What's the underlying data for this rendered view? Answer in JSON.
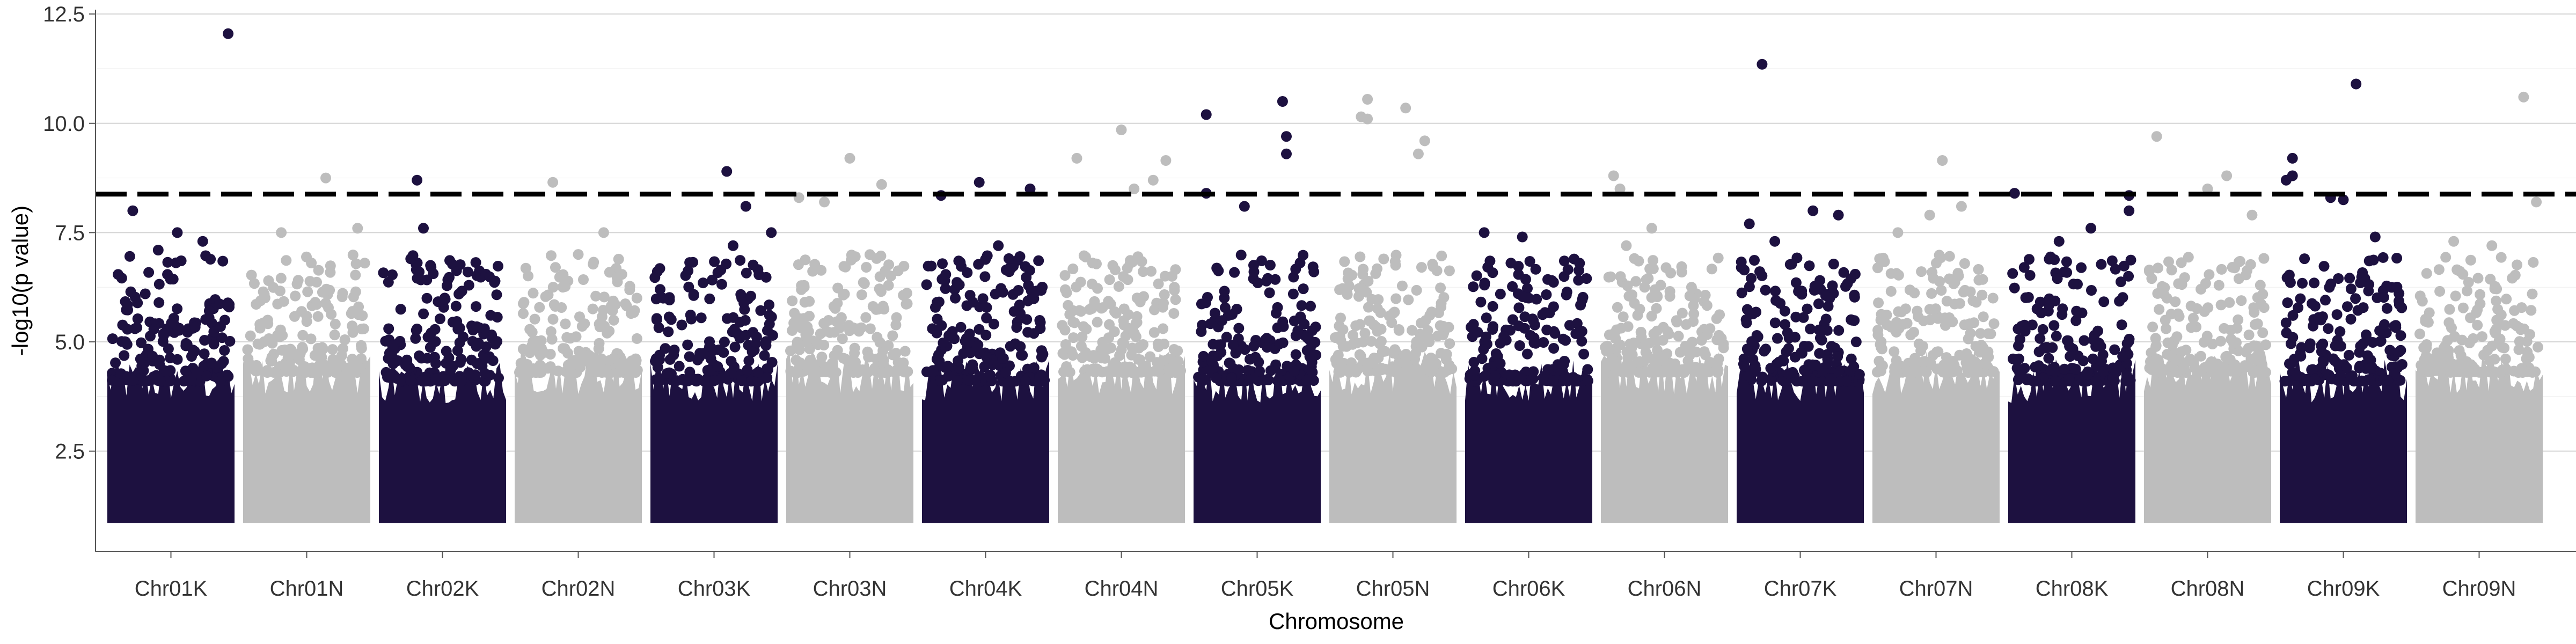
{
  "chart_data": {
    "type": "scatter",
    "title": "",
    "xlabel": "Chromosome",
    "ylabel": "-log10(p value)",
    "ylim": [
      0.2,
      12.6
    ],
    "yticks": [
      2.5,
      5.0,
      7.5,
      10.0,
      12.5
    ],
    "ytick_labels": [
      "2.5",
      "5.0",
      "7.5",
      "10.0",
      "12.5"
    ],
    "grid": "horizontal-major",
    "threshold": {
      "value": 8.38,
      "style": "dashed",
      "color": "#000000"
    },
    "colors": {
      "dark": "#1d1140",
      "light": "#bdbdbd"
    },
    "categories": [
      "Chr01K",
      "Chr01N",
      "Chr02K",
      "Chr02N",
      "Chr03K",
      "Chr03N",
      "Chr04K",
      "Chr04N",
      "Chr05K",
      "Chr05N",
      "Chr06K",
      "Chr06N",
      "Chr07K",
      "Chr07N",
      "Chr08K",
      "Chr08N",
      "Chr09K",
      "Chr09N"
    ],
    "series": [
      {
        "category": "Chr01K",
        "color": "dark",
        "max": 12.05,
        "top_points": [
          [
            0.95,
            12.05
          ],
          [
            0.2,
            8.0
          ],
          [
            0.55,
            7.5
          ],
          [
            0.75,
            7.3
          ],
          [
            0.4,
            7.1
          ]
        ]
      },
      {
        "category": "Chr01N",
        "color": "light",
        "max": 8.75,
        "top_points": [
          [
            0.65,
            8.75
          ],
          [
            0.9,
            7.6
          ],
          [
            0.3,
            7.5
          ],
          [
            0.2,
            6.4
          ]
        ]
      },
      {
        "category": "Chr02K",
        "color": "dark",
        "max": 8.7,
        "top_points": [
          [
            0.3,
            8.7
          ],
          [
            0.35,
            7.6
          ],
          [
            0.25,
            6.9
          ],
          [
            0.7,
            6.6
          ]
        ]
      },
      {
        "category": "Chr02N",
        "color": "light",
        "max": 8.65,
        "top_points": [
          [
            0.3,
            8.65
          ],
          [
            0.7,
            7.5
          ],
          [
            0.5,
            7.0
          ]
        ]
      },
      {
        "category": "Chr03K",
        "color": "dark",
        "max": 8.9,
        "top_points": [
          [
            0.6,
            8.9
          ],
          [
            0.75,
            8.1
          ],
          [
            0.95,
            7.5
          ],
          [
            0.65,
            7.2
          ],
          [
            0.1,
            6.0
          ]
        ]
      },
      {
        "category": "Chr03N",
        "color": "light",
        "max": 9.2,
        "top_points": [
          [
            0.5,
            9.2
          ],
          [
            0.1,
            8.3
          ],
          [
            0.75,
            8.6
          ],
          [
            0.3,
            8.2
          ]
        ]
      },
      {
        "category": "Chr04K",
        "color": "dark",
        "max": 8.65,
        "top_points": [
          [
            0.45,
            8.65
          ],
          [
            0.85,
            8.5
          ],
          [
            0.15,
            8.35
          ],
          [
            0.6,
            7.2
          ]
        ]
      },
      {
        "category": "Chr04N",
        "color": "light",
        "max": 9.85,
        "top_points": [
          [
            0.5,
            9.85
          ],
          [
            0.15,
            9.2
          ],
          [
            0.85,
            9.15
          ],
          [
            0.75,
            8.7
          ],
          [
            0.6,
            8.5
          ]
        ]
      },
      {
        "category": "Chr05K",
        "color": "dark",
        "max": 10.5,
        "top_points": [
          [
            0.7,
            10.5
          ],
          [
            0.1,
            10.2
          ],
          [
            0.73,
            9.7
          ],
          [
            0.73,
            9.3
          ],
          [
            0.1,
            8.4
          ],
          [
            0.4,
            8.1
          ]
        ]
      },
      {
        "category": "Chr05N",
        "color": "light",
        "max": 10.55,
        "top_points": [
          [
            0.3,
            10.55
          ],
          [
            0.6,
            10.35
          ],
          [
            0.25,
            10.15
          ],
          [
            0.3,
            10.1
          ],
          [
            0.75,
            9.6
          ],
          [
            0.7,
            9.3
          ]
        ]
      },
      {
        "category": "Chr06K",
        "color": "dark",
        "max": 7.5,
        "top_points": [
          [
            0.15,
            7.5
          ],
          [
            0.45,
            7.4
          ],
          [
            0.9,
            6.8
          ]
        ]
      },
      {
        "category": "Chr06N",
        "color": "light",
        "max": 8.8,
        "top_points": [
          [
            0.1,
            8.8
          ],
          [
            0.15,
            8.5
          ],
          [
            0.4,
            7.6
          ],
          [
            0.2,
            7.2
          ]
        ]
      },
      {
        "category": "Chr07K",
        "color": "dark",
        "max": 11.35,
        "top_points": [
          [
            0.2,
            11.35
          ],
          [
            0.1,
            7.7
          ],
          [
            0.6,
            8.0
          ],
          [
            0.8,
            7.9
          ],
          [
            0.3,
            7.3
          ]
        ]
      },
      {
        "category": "Chr07N",
        "color": "light",
        "max": 9.15,
        "top_points": [
          [
            0.55,
            9.15
          ],
          [
            0.7,
            8.1
          ],
          [
            0.2,
            7.5
          ],
          [
            0.45,
            7.9
          ]
        ]
      },
      {
        "category": "Chr08K",
        "color": "dark",
        "max": 8.4,
        "top_points": [
          [
            0.05,
            8.4
          ],
          [
            0.95,
            8.35
          ],
          [
            0.95,
            8.0
          ],
          [
            0.65,
            7.6
          ],
          [
            0.4,
            7.3
          ]
        ]
      },
      {
        "category": "Chr08N",
        "color": "light",
        "max": 9.7,
        "top_points": [
          [
            0.1,
            9.7
          ],
          [
            0.65,
            8.8
          ],
          [
            0.5,
            8.5
          ],
          [
            0.85,
            7.9
          ]
        ]
      },
      {
        "category": "Chr09K",
        "color": "dark",
        "max": 10.9,
        "top_points": [
          [
            0.6,
            10.9
          ],
          [
            0.1,
            9.2
          ],
          [
            0.1,
            8.8
          ],
          [
            0.05,
            8.7
          ],
          [
            0.4,
            8.3
          ],
          [
            0.5,
            8.25
          ],
          [
            0.75,
            7.4
          ]
        ]
      },
      {
        "category": "Chr09N",
        "color": "light",
        "max": 10.6,
        "top_points": [
          [
            0.85,
            10.6
          ],
          [
            0.95,
            8.2
          ],
          [
            0.6,
            7.2
          ],
          [
            0.3,
            7.3
          ]
        ]
      }
    ]
  }
}
